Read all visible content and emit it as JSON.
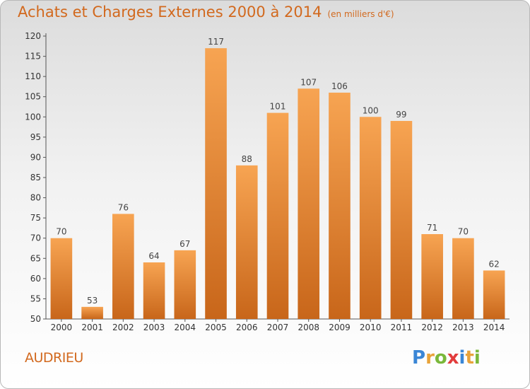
{
  "title": "Achats et Charges Externes 2000 à 2014",
  "unit": "(en milliers d'€)",
  "city": "AUDRIEU",
  "logo": [
    "P",
    "r",
    "o",
    "x",
    "i",
    "t",
    "i"
  ],
  "logo_colors": [
    "#3a86d6",
    "#e8a33a",
    "#7ab83a",
    "#e23c3c",
    "#3a86d6",
    "#e8a33a",
    "#7ab83a"
  ],
  "colors": {
    "bar_top": "#f7a452",
    "bar_bottom": "#c8661a",
    "accent": "#d2691e"
  },
  "chart_data": {
    "type": "bar",
    "categories": [
      "2000",
      "2001",
      "2002",
      "2003",
      "2004",
      "2005",
      "2006",
      "2007",
      "2008",
      "2009",
      "2010",
      "2011",
      "2012",
      "2013",
      "2014"
    ],
    "values": [
      70,
      53,
      76,
      64,
      67,
      117,
      88,
      101,
      107,
      106,
      100,
      99,
      71,
      70,
      62
    ],
    "data_labels": [
      "70",
      "53",
      "76",
      "64",
      "67",
      "117",
      "88",
      "101",
      "107",
      "106",
      "100",
      "99",
      "71",
      "70",
      "62"
    ],
    "y_ticks": [
      "50",
      "55",
      "60",
      "65",
      "70",
      "75",
      "80",
      "85",
      "90",
      "95",
      "100",
      "105",
      "110",
      "115",
      "120"
    ],
    "ylim": [
      50,
      120
    ],
    "grid": false,
    "legend": "none"
  }
}
